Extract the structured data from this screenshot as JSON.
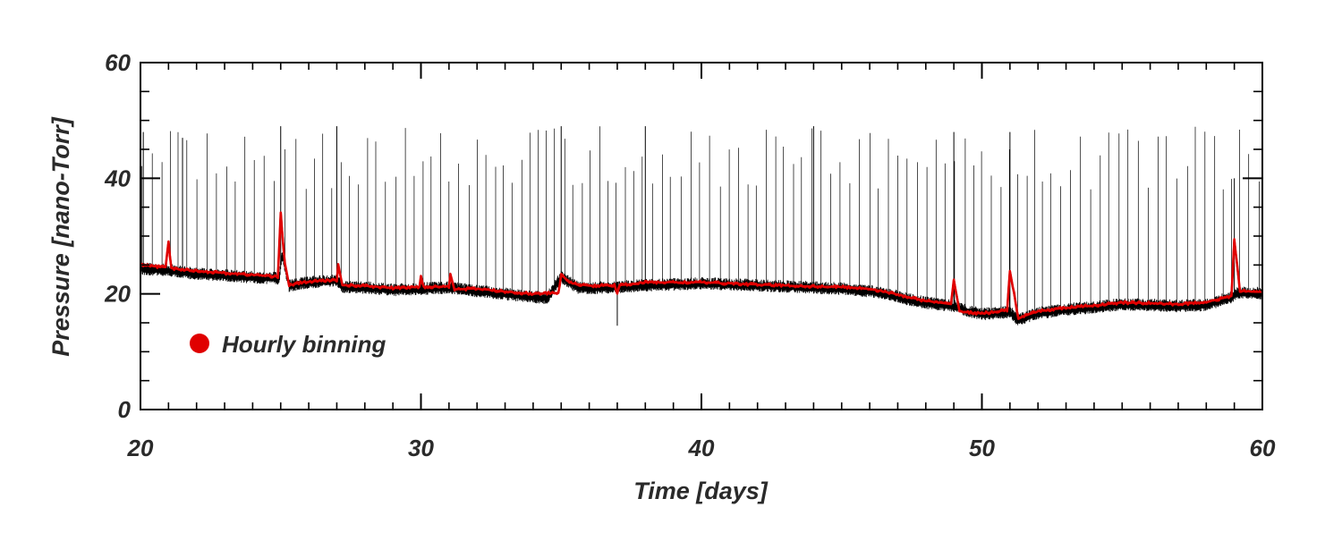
{
  "chart_data": {
    "type": "line",
    "title": "",
    "xlabel": "Time [days]",
    "ylabel": "Pressure [nano-Torr]",
    "xlim": [
      20,
      60
    ],
    "ylim": [
      0,
      60
    ],
    "x_ticks": [
      20,
      30,
      40,
      50,
      60
    ],
    "y_ticks": [
      0,
      20,
      40,
      60
    ],
    "x_minor_step": 1,
    "y_minor_step": 5,
    "grid": false,
    "legend": {
      "placement": "lower-left",
      "entries": [
        {
          "label": "Hourly binning",
          "color": "#e00000",
          "marker": "filled-circle"
        }
      ]
    },
    "series": [
      {
        "description": "raw measurements",
        "color": "#000000",
        "baseline": {
          "x": [
            20,
            21,
            22,
            23,
            24,
            24.95,
            25.05,
            25.3,
            25.8,
            26.5,
            27,
            27.2,
            28,
            29,
            30,
            31,
            32,
            33,
            34,
            34.5,
            35,
            35.6,
            36,
            37,
            38,
            40,
            42,
            44,
            45,
            46,
            47,
            47.5,
            48,
            49,
            49.5,
            50,
            50.5,
            51,
            51.3,
            52,
            53,
            54,
            55,
            56,
            57,
            58,
            58.9,
            59.1,
            60
          ],
          "y": [
            24.5,
            24.2,
            23.6,
            23.3,
            23.0,
            22.8,
            27.0,
            21.5,
            22.0,
            22.3,
            22.5,
            21.3,
            21.2,
            20.8,
            21.0,
            21.2,
            20.6,
            20.1,
            19.6,
            19.4,
            23.0,
            21.2,
            21.1,
            21.3,
            21.6,
            21.9,
            21.6,
            21.2,
            21.0,
            20.6,
            19.7,
            19.0,
            18.6,
            18.0,
            17.2,
            16.6,
            16.8,
            17.0,
            15.6,
            16.8,
            17.4,
            17.8,
            18.3,
            18.2,
            18.0,
            18.2,
            19.6,
            20.3,
            20.2
          ]
        },
        "spikes": [
          {
            "x": 20.1,
            "y": 48
          },
          {
            "x": 21.5,
            "y": 47
          },
          {
            "x": 25.0,
            "y": 49
          },
          {
            "x": 27.0,
            "y": 49
          },
          {
            "x": 35.0,
            "y": 49
          },
          {
            "x": 37.0,
            "y": 14.5
          },
          {
            "x": 38.0,
            "y": 49
          },
          {
            "x": 44.0,
            "y": 49
          },
          {
            "x": 49.0,
            "y": 48
          },
          {
            "x": 51.0,
            "y": 48
          },
          {
            "x": 59.0,
            "y": 40
          }
        ],
        "spike_band": [
          38,
          49
        ]
      },
      {
        "name": "Hourly binning",
        "color": "#e00000",
        "x": [
          20,
          20.9,
          21.0,
          21.1,
          22,
          23,
          24,
          24.9,
          25.0,
          25.15,
          25.3,
          25.8,
          26.5,
          27,
          27.05,
          27.2,
          28,
          29,
          29.95,
          30.0,
          30.1,
          31,
          31.05,
          31.2,
          32,
          33,
          34,
          34.9,
          35.0,
          35.4,
          36,
          36.9,
          37.0,
          37.1,
          38,
          40,
          42,
          44,
          45,
          46,
          47,
          47.5,
          48,
          48.9,
          49.0,
          49.2,
          49.5,
          50,
          50.9,
          51.0,
          51.3,
          52,
          53,
          54,
          55,
          56,
          57,
          58,
          58.9,
          59.0,
          59.2,
          60
        ],
        "y": [
          25.0,
          24.6,
          29.0,
          24.4,
          24.0,
          23.6,
          23.3,
          23.0,
          34.0,
          25.0,
          21.5,
          22.0,
          22.3,
          22.4,
          25.0,
          21.5,
          21.4,
          21.0,
          21.2,
          23.0,
          21.2,
          21.3,
          23.5,
          20.8,
          20.9,
          20.4,
          20.0,
          20.2,
          23.2,
          21.8,
          21.4,
          21.5,
          20.2,
          21.5,
          22.0,
          22.0,
          21.6,
          21.3,
          21.2,
          20.9,
          19.9,
          19.3,
          18.8,
          18.2,
          22.5,
          17.0,
          16.8,
          16.6,
          17.2,
          24.0,
          15.8,
          17.0,
          17.6,
          18.0,
          18.5,
          18.4,
          18.2,
          18.6,
          19.6,
          29.5,
          20.5,
          20.3
        ]
      }
    ]
  }
}
